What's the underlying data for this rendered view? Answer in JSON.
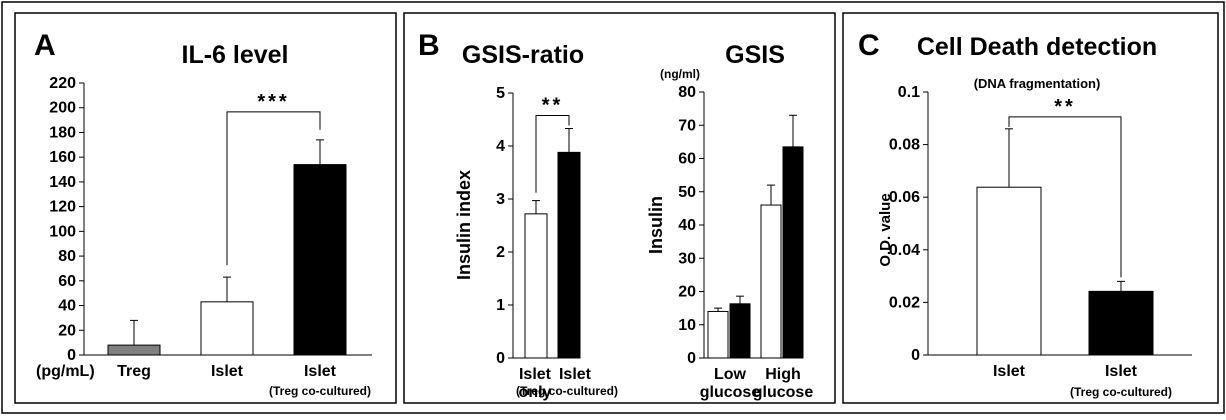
{
  "chart_data": [
    {
      "type": "bar",
      "letter": "A",
      "title": "IL-6 level",
      "unit_label": "(pg/mL)",
      "ylim": [
        0,
        220
      ],
      "yticks": [
        "0",
        "20",
        "40",
        "60",
        "80",
        "100",
        "120",
        "140",
        "160",
        "180",
        "200",
        "220"
      ],
      "categories": [
        "Treg",
        "Islet",
        "Islet"
      ],
      "category_sub": [
        "",
        "",
        "(Treg co-cultured)"
      ],
      "values": [
        8,
        43,
        154
      ],
      "errors": [
        20,
        20,
        20
      ],
      "colors": [
        "#808080",
        "#ffffff",
        "#000000"
      ],
      "significance": "***",
      "significance_pair": [
        1,
        2
      ]
    },
    {
      "type": "bar",
      "letter": "B",
      "title": "GSIS-ratio",
      "ylabel": "Insulin index",
      "ylim": [
        0,
        5
      ],
      "yticks": [
        "0",
        "1",
        "2",
        "3",
        "4",
        "5"
      ],
      "categories": [
        "Islet only",
        "Islet"
      ],
      "category_sub": [
        "",
        "(Treg co-cultured)"
      ],
      "values": [
        2.72,
        3.88
      ],
      "errors": [
        0.25,
        0.45
      ],
      "colors": [
        "#ffffff",
        "#000000"
      ],
      "significance": "**",
      "significance_pair": [
        0,
        1
      ]
    },
    {
      "type": "bar",
      "title": "GSIS",
      "unit_label": "(ng/ml)",
      "ylabel": "Insulin",
      "ylim": [
        0,
        80
      ],
      "yticks": [
        "0",
        "10",
        "20",
        "30",
        "40",
        "50",
        "60",
        "70",
        "80"
      ],
      "categories": [
        "Low glucose",
        "High glucose"
      ],
      "series": [
        {
          "values": [
            14,
            46
          ],
          "errors": [
            1,
            6
          ],
          "color": "#ffffff"
        },
        {
          "values": [
            16.3,
            63.5
          ],
          "errors": [
            2.3,
            9.5
          ],
          "color": "#000000"
        }
      ]
    },
    {
      "type": "bar",
      "letter": "C",
      "title": "Cell Death detection",
      "subtitle": "(DNA fragmentation)",
      "ylabel": "O.D. value",
      "ylim": [
        0,
        0.1
      ],
      "yticks": [
        "0",
        "0.02",
        "0.04",
        "0.06",
        "0.08",
        "0.1"
      ],
      "categories": [
        "Islet",
        "Islet"
      ],
      "category_sub": [
        "",
        "(Treg co-cultured)"
      ],
      "values": [
        0.0638,
        0.0242
      ],
      "errors": [
        0.0222,
        0.0038
      ],
      "colors": [
        "#ffffff",
        "#000000"
      ],
      "significance": "**",
      "significance_pair": [
        0,
        1
      ]
    }
  ]
}
